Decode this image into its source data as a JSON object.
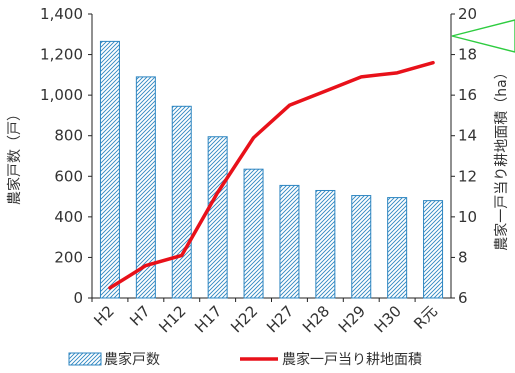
{
  "chart_data": {
    "type": "bar",
    "categories": [
      "H2",
      "H7",
      "H12",
      "H17",
      "H22",
      "H27",
      "H28",
      "H29",
      "H30",
      "R元"
    ],
    "series": [
      {
        "name": "農家戸数",
        "type": "bar",
        "axis": "left",
        "values": [
          1265,
          1090,
          945,
          795,
          635,
          555,
          530,
          505,
          495,
          480
        ],
        "color": "#2e86c1"
      },
      {
        "name": "農家一戸当り耕地面積",
        "type": "line",
        "axis": "right",
        "values": [
          6.5,
          7.6,
          8.1,
          11.2,
          13.9,
          15.5,
          16.2,
          16.9,
          17.1,
          17.6
        ],
        "color": "#e8111a"
      }
    ],
    "ylabel_left": "農家戸数（戸）",
    "ylabel_right": "農家一戸当り耕地面積（ha）",
    "ylim_left": [
      0,
      1400
    ],
    "ylim_right": [
      6,
      20
    ],
    "yticks_left": [
      "0",
      "200",
      "400",
      "600",
      "800",
      "1,000",
      "1,200",
      "1,400"
    ],
    "yticks_right": [
      "6",
      "8",
      "10",
      "12",
      "14",
      "16",
      "18",
      "20"
    ],
    "legend_position": "bottom",
    "grid": false,
    "annotation": "green-arrow-top-right"
  }
}
